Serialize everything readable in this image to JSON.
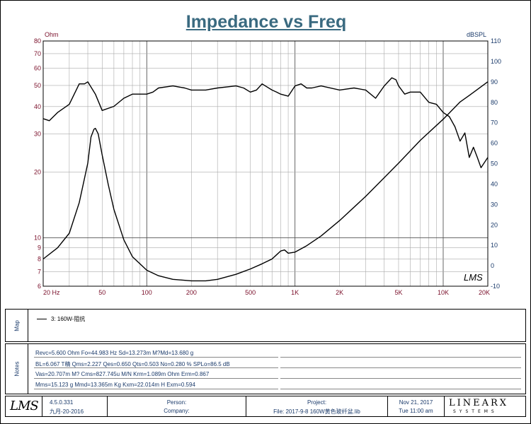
{
  "chart_data": {
    "type": "line",
    "title": "Impedance vs Freq",
    "left_axis": {
      "unit": "Ohm",
      "scale": "log",
      "range": [
        6,
        80
      ],
      "ticks": [
        "6",
        "7",
        "8",
        "9",
        "10",
        "20",
        "30",
        "40",
        "50",
        "60",
        "70",
        "80"
      ]
    },
    "right_axis": {
      "unit": "dBSPL",
      "scale": "linear",
      "range": [
        -10,
        110
      ],
      "ticks": [
        "-10",
        "0",
        "10",
        "20",
        "30",
        "40",
        "50",
        "60",
        "70",
        "80",
        "90",
        "100",
        "110"
      ]
    },
    "x_axis": {
      "unit": "Hz",
      "scale": "log",
      "range": [
        20,
        20000
      ],
      "ticks": [
        "20 Hz",
        "50",
        "100",
        "200",
        "500",
        "1K",
        "2K",
        "5K",
        "10K",
        "20K"
      ]
    },
    "series": [
      {
        "name": "Impedance (Ohm, left axis)",
        "axis": "left",
        "x": [
          20,
          25,
          30,
          35,
          40,
          42,
          44,
          45,
          47,
          50,
          55,
          60,
          70,
          80,
          100,
          120,
          150,
          200,
          250,
          300,
          400,
          500,
          600,
          700,
          750,
          800,
          850,
          900,
          1000,
          1200,
          1500,
          2000,
          3000,
          5000,
          7000,
          10000,
          13000,
          15000,
          20000
        ],
        "values": [
          8.0,
          9.0,
          10.5,
          14.5,
          22,
          29,
          31.5,
          31.8,
          30,
          24,
          17.5,
          13.5,
          9.8,
          8.2,
          7.1,
          6.7,
          6.45,
          6.35,
          6.35,
          6.45,
          6.8,
          7.2,
          7.6,
          8.0,
          8.35,
          8.7,
          8.8,
          8.5,
          8.6,
          9.2,
          10.2,
          12,
          15.5,
          22,
          28,
          35,
          42,
          45,
          52
        ]
      },
      {
        "name": "SPL (dBSPL, right axis)",
        "axis": "right",
        "x": [
          20,
          22,
          25,
          30,
          35,
          38,
          40,
          45,
          50,
          60,
          70,
          80,
          100,
          110,
          120,
          150,
          180,
          200,
          250,
          300,
          400,
          450,
          500,
          550,
          600,
          700,
          750,
          800,
          900,
          1000,
          1100,
          1200,
          1300,
          1500,
          2000,
          2500,
          3000,
          3500,
          4000,
          4500,
          4800,
          5000,
          5500,
          6000,
          7000,
          8000,
          9000,
          10000,
          11000,
          12000,
          13000,
          14000,
          15000,
          16000,
          17000,
          18000,
          20000
        ],
        "values": [
          72,
          71,
          75,
          79,
          89,
          89,
          90,
          84,
          76,
          78,
          82,
          84,
          84,
          85,
          87,
          88,
          87,
          86,
          86,
          87,
          88,
          87,
          85,
          86,
          89,
          86,
          85,
          84,
          83,
          88,
          89,
          87,
          87,
          88,
          86,
          87,
          86,
          82,
          88,
          92,
          91,
          88,
          84,
          85,
          85,
          80,
          79,
          75,
          73,
          68,
          61,
          65,
          53,
          58,
          53,
          48,
          53
        ]
      }
    ],
    "legend": [
      "3: 160W-阻抗"
    ]
  },
  "panels": {
    "map_label": "Map",
    "notes_label": "Notes",
    "legend_text": "3: 160W-阻抗",
    "notes": [
      "Revc=5.600 Ohm  Fo=44.983 Hz  Sd=13.273m M?Md=13.680 g",
      "BL=6.067 T精  Qms=2.227  Qes=0.650  Qts=0.503  No=0.280 %  SPLo=86.5 dB",
      "Vas=20.707m M? Cms=827.745u M/N  Krm=1.089m Ohm  Erm=0.867",
      "Mms=15.123 g  Mmd=13.365m Kg  Kxm=22.014m H  Exm=0.594"
    ]
  },
  "footer": {
    "logo_text": "LMS",
    "version": "4.5.0.331",
    "version_date": "九月-20-2016",
    "person_label": "Person:",
    "company_label": "Company:",
    "project_label": "Project:",
    "file_text": "File: 2017-9-8 160W黄色玻纤盆.lib",
    "date": "Nov 21, 2017",
    "time": "Tue 11:00 am",
    "brand_main": "LINEARX",
    "brand_sub": "SYSTEMS"
  },
  "watermark": "LMS"
}
